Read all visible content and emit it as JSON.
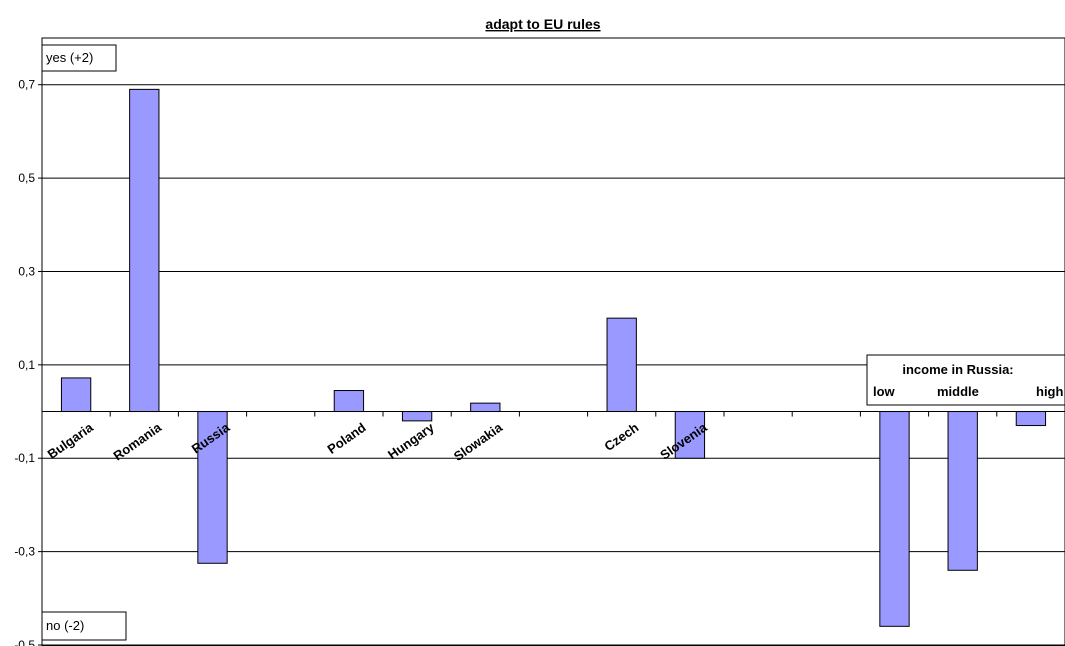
{
  "chart_data": {
    "type": "bar",
    "title": "adapt to EU rules",
    "xlabel": "",
    "ylabel": "",
    "ylim": [
      -0.5,
      0.8
    ],
    "yticks": [
      -0.5,
      -0.3,
      -0.1,
      0.1,
      0.3,
      0.5,
      0.7
    ],
    "ytick_labels": [
      "-0,5",
      "-0,3",
      "-0,1",
      "0,1",
      "0,3",
      "0,5",
      "0,7"
    ],
    "grid": true,
    "bar_color": "#9999ff",
    "categories": [
      "Bulgaria",
      "Romania",
      "Russia",
      "",
      "Poland",
      "Hungary",
      "Slowakia",
      "",
      "Czech",
      "Slovenia",
      "",
      "",
      "low",
      "middle",
      "high"
    ],
    "values": [
      0.072,
      0.69,
      -0.325,
      null,
      0.045,
      -0.02,
      0.018,
      null,
      0.2,
      -0.1,
      null,
      null,
      -0.46,
      -0.34,
      -0.03
    ],
    "annotations": {
      "top_box": "yes (+2)",
      "bottom_box": "no (-2)",
      "income_title": "income in Russia:",
      "income_levels": [
        "low",
        "middle",
        "high"
      ]
    }
  }
}
